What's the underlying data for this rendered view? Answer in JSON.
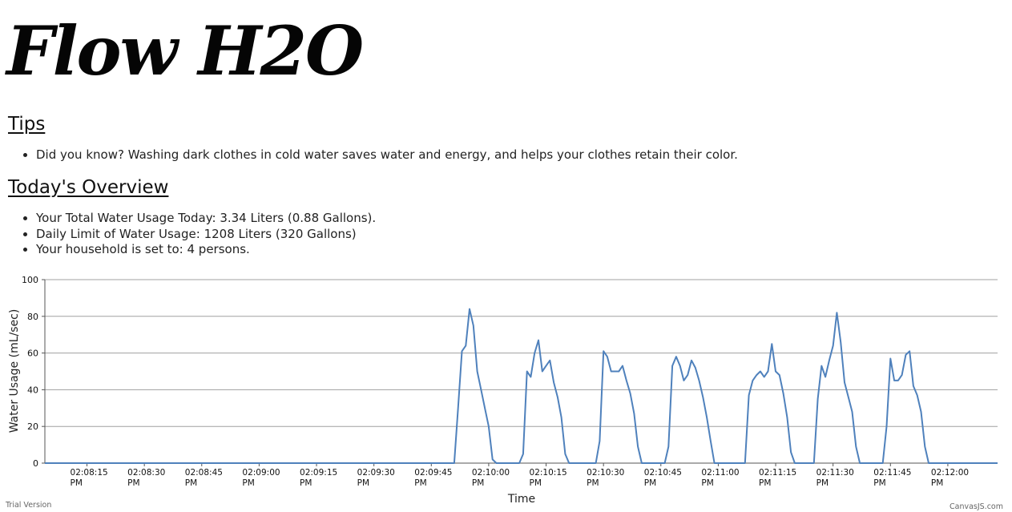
{
  "header": {
    "logo": "Flow H2O"
  },
  "tips": {
    "heading": "Tips",
    "items": [
      "Did you know? Washing dark clothes in cold water saves water and energy, and helps your clothes retain their color."
    ]
  },
  "overview": {
    "heading": "Today's Overview",
    "items": [
      "Your Total Water Usage Today: 3.34 Liters (0.88 Gallons).",
      "Daily Limit of Water Usage: 1208 Liters (320 Gallons)",
      "Your household is set to: 4 persons."
    ]
  },
  "footer": {
    "trial": "Trial Version",
    "credit": "CanvasJS.com"
  },
  "chart_data": {
    "type": "line",
    "xlabel": "Time",
    "ylabel": "Water Usage (mL/sec)",
    "ylim": [
      0,
      100
    ],
    "y_ticks": [
      0,
      20,
      40,
      60,
      80,
      100
    ],
    "xlim": [
      "02:08:04 PM",
      "02:12:13 PM"
    ],
    "x_tick_labels": [
      {
        "time": "02:08:15",
        "ampm": "PM"
      },
      {
        "time": "02:08:30",
        "ampm": "PM"
      },
      {
        "time": "02:08:45",
        "ampm": "PM"
      },
      {
        "time": "02:09:00",
        "ampm": "PM"
      },
      {
        "time": "02:09:15",
        "ampm": "PM"
      },
      {
        "time": "02:09:30",
        "ampm": "PM"
      },
      {
        "time": "02:09:45",
        "ampm": "PM"
      },
      {
        "time": "02:10:00",
        "ampm": "PM"
      },
      {
        "time": "02:10:15",
        "ampm": "PM"
      },
      {
        "time": "02:10:30",
        "ampm": "PM"
      },
      {
        "time": "02:10:45",
        "ampm": "PM"
      },
      {
        "time": "02:11:00",
        "ampm": "PM"
      },
      {
        "time": "02:11:15",
        "ampm": "PM"
      },
      {
        "time": "02:11:30",
        "ampm": "PM"
      },
      {
        "time": "02:11:45",
        "ampm": "PM"
      },
      {
        "time": "02:12:00",
        "ampm": "PM"
      }
    ],
    "grid": true,
    "line_color": "#4f81bc",
    "gridline_color": "#a0a0a0",
    "series": [
      {
        "points": [
          [
            "02:08:04 PM",
            0
          ],
          [
            "02:09:51 PM",
            0
          ],
          [
            "02:09:52 PM",
            30
          ],
          [
            "02:09:53 PM",
            61
          ],
          [
            "02:09:54 PM",
            64
          ],
          [
            "02:09:55 PM",
            84
          ],
          [
            "02:09:56 PM",
            75
          ],
          [
            "02:09:57 PM",
            50
          ],
          [
            "02:09:58 PM",
            40
          ],
          [
            "02:09:59 PM",
            30
          ],
          [
            "02:10:00 PM",
            20
          ],
          [
            "02:10:01 PM",
            2
          ],
          [
            "02:10:02 PM",
            0
          ],
          [
            "02:10:08 PM",
            0
          ],
          [
            "02:10:09 PM",
            5
          ],
          [
            "02:10:10 PM",
            50
          ],
          [
            "02:10:11 PM",
            47
          ],
          [
            "02:10:12 PM",
            60
          ],
          [
            "02:10:13 PM",
            67
          ],
          [
            "02:10:14 PM",
            50
          ],
          [
            "02:10:15 PM",
            53
          ],
          [
            "02:10:16 PM",
            56
          ],
          [
            "02:10:17 PM",
            44
          ],
          [
            "02:10:18 PM",
            36
          ],
          [
            "02:10:19 PM",
            25
          ],
          [
            "02:10:20 PM",
            5
          ],
          [
            "02:10:21 PM",
            0
          ],
          [
            "02:10:28 PM",
            0
          ],
          [
            "02:10:29 PM",
            12
          ],
          [
            "02:10:30 PM",
            61
          ],
          [
            "02:10:31 PM",
            58
          ],
          [
            "02:10:32 PM",
            50
          ],
          [
            "02:10:33 PM",
            50
          ],
          [
            "02:10:34 PM",
            50
          ],
          [
            "02:10:35 PM",
            53
          ],
          [
            "02:10:36 PM",
            45
          ],
          [
            "02:10:37 PM",
            38
          ],
          [
            "02:10:38 PM",
            27
          ],
          [
            "02:10:39 PM",
            9
          ],
          [
            "02:10:40 PM",
            0
          ],
          [
            "02:10:46 PM",
            0
          ],
          [
            "02:10:47 PM",
            9
          ],
          [
            "02:10:48 PM",
            53
          ],
          [
            "02:10:49 PM",
            58
          ],
          [
            "02:10:50 PM",
            53
          ],
          [
            "02:10:51 PM",
            45
          ],
          [
            "02:10:52 PM",
            48
          ],
          [
            "02:10:53 PM",
            56
          ],
          [
            "02:10:54 PM",
            52
          ],
          [
            "02:10:55 PM",
            45
          ],
          [
            "02:10:56 PM",
            36
          ],
          [
            "02:10:57 PM",
            25
          ],
          [
            "02:10:58 PM",
            12
          ],
          [
            "02:10:59 PM",
            0
          ],
          [
            "02:11:07 PM",
            0
          ],
          [
            "02:11:08 PM",
            37
          ],
          [
            "02:11:09 PM",
            45
          ],
          [
            "02:11:10 PM",
            48
          ],
          [
            "02:11:11 PM",
            50
          ],
          [
            "02:11:12 PM",
            47
          ],
          [
            "02:11:13 PM",
            50
          ],
          [
            "02:11:14 PM",
            65
          ],
          [
            "02:11:15 PM",
            50
          ],
          [
            "02:11:16 PM",
            48
          ],
          [
            "02:11:17 PM",
            38
          ],
          [
            "02:11:18 PM",
            25
          ],
          [
            "02:11:19 PM",
            6
          ],
          [
            "02:11:20 PM",
            0
          ],
          [
            "02:11:25 PM",
            0
          ],
          [
            "02:11:26 PM",
            35
          ],
          [
            "02:11:27 PM",
            53
          ],
          [
            "02:11:28 PM",
            47
          ],
          [
            "02:11:29 PM",
            56
          ],
          [
            "02:11:30 PM",
            64
          ],
          [
            "02:11:31 PM",
            82
          ],
          [
            "02:11:32 PM",
            66
          ],
          [
            "02:11:33 PM",
            44
          ],
          [
            "02:11:34 PM",
            36
          ],
          [
            "02:11:35 PM",
            28
          ],
          [
            "02:11:36 PM",
            9
          ],
          [
            "02:11:37 PM",
            0
          ],
          [
            "02:11:43 PM",
            0
          ],
          [
            "02:11:44 PM",
            20
          ],
          [
            "02:11:45 PM",
            57
          ],
          [
            "02:11:46 PM",
            45
          ],
          [
            "02:11:47 PM",
            45
          ],
          [
            "02:11:48 PM",
            48
          ],
          [
            "02:11:49 PM",
            59
          ],
          [
            "02:11:50 PM",
            61
          ],
          [
            "02:11:51 PM",
            42
          ],
          [
            "02:11:52 PM",
            37
          ],
          [
            "02:11:53 PM",
            28
          ],
          [
            "02:11:54 PM",
            9
          ],
          [
            "02:11:55 PM",
            0
          ],
          [
            "02:12:13 PM",
            0
          ]
        ]
      }
    ]
  }
}
